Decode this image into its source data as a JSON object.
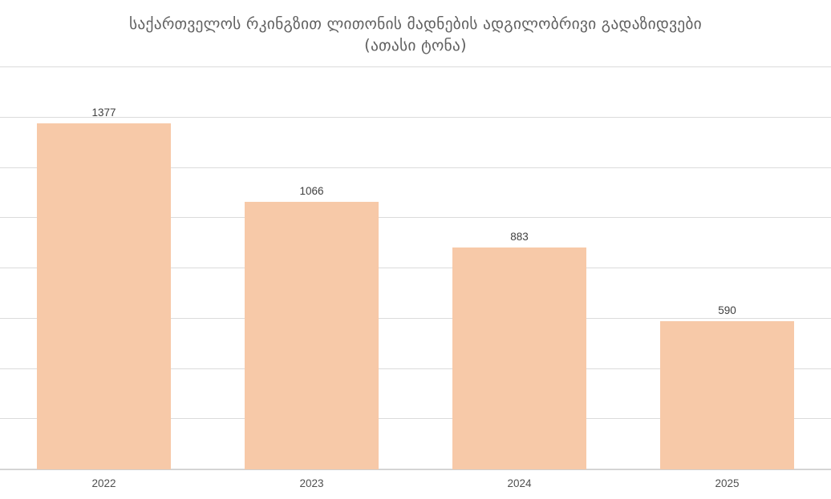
{
  "title": {
    "line1": "საქართველოს რკინგზით ლითონის მადნების ადგილობრივი გადაზიდვები",
    "line2": "(ათასი ტონა)"
  },
  "chart_data": {
    "type": "bar",
    "title": "საქართველოს რკინგზით ლითონის მადნების ადგილობრივი გადაზიდვები (ათასი ტონა)",
    "categories": [
      "2022",
      "2023",
      "2024",
      "2025"
    ],
    "values": [
      1377,
      1066,
      883,
      590
    ],
    "value_labels": [
      "1377",
      "1066",
      "883",
      "590"
    ],
    "xlabel": "",
    "ylabel": "",
    "ylim": [
      0,
      1600
    ],
    "ytick_step": 200,
    "grid": true,
    "y_tick_labels_visible": false,
    "legend": "none",
    "colors": {
      "bar_fill": "#f7c9a8",
      "gridline": "#dbdbdb",
      "axis_line": "#cfcfcf",
      "title_text": "#616161",
      "value_label_text": "#3f3f3f",
      "tick_label_text": "#4f4f4f",
      "background": "#ffffff"
    }
  }
}
